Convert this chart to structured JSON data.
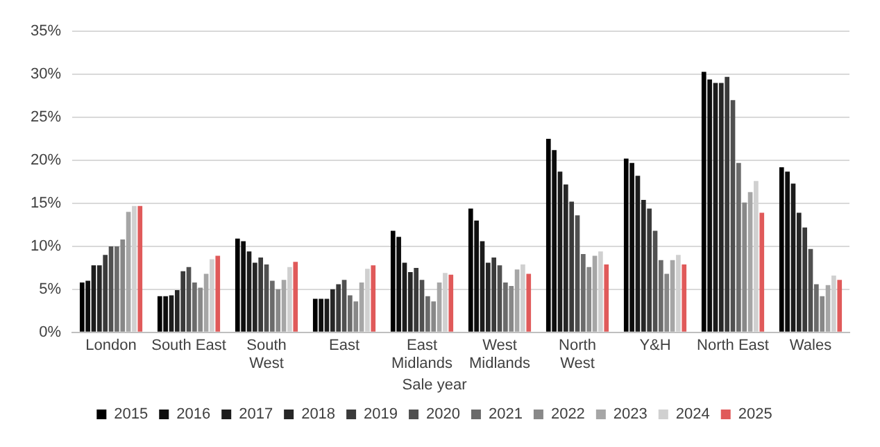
{
  "chart_data": {
    "type": "bar",
    "categories": [
      "London",
      "South East",
      "South\nWest",
      "East",
      "East\nMidlands",
      "West\nMidlands",
      "North\nWest",
      "Y&H",
      "North East",
      "Wales"
    ],
    "series": [
      {
        "name": "2015",
        "color": "#000000",
        "values": [
          5.8,
          4.2,
          10.9,
          3.9,
          11.8,
          14.4,
          22.5,
          20.2,
          30.3,
          19.2
        ]
      },
      {
        "name": "2016",
        "color": "#0d0d0d",
        "values": [
          6.0,
          4.2,
          10.6,
          3.9,
          11.1,
          13.0,
          21.2,
          19.7,
          29.4,
          18.7
        ]
      },
      {
        "name": "2017",
        "color": "#1c1c1c",
        "values": [
          7.8,
          4.3,
          9.4,
          3.9,
          8.1,
          10.6,
          18.7,
          18.2,
          29.0,
          17.3
        ]
      },
      {
        "name": "2018",
        "color": "#262626",
        "values": [
          7.8,
          4.9,
          8.1,
          5.0,
          7.0,
          8.1,
          17.2,
          15.4,
          29.0,
          13.9
        ]
      },
      {
        "name": "2019",
        "color": "#3a3a3a",
        "values": [
          9.0,
          7.1,
          8.7,
          5.6,
          7.5,
          8.7,
          15.2,
          14.4,
          29.7,
          12.2
        ]
      },
      {
        "name": "2020",
        "color": "#505050",
        "values": [
          10.0,
          7.6,
          7.9,
          6.1,
          6.1,
          7.8,
          13.6,
          11.8,
          27.0,
          9.7
        ]
      },
      {
        "name": "2021",
        "color": "#6b6b6b",
        "values": [
          10.0,
          5.8,
          6.0,
          4.3,
          4.2,
          5.8,
          9.1,
          8.4,
          19.7,
          5.6
        ]
      },
      {
        "name": "2022",
        "color": "#888888",
        "values": [
          10.8,
          5.2,
          5.0,
          3.6,
          3.6,
          5.4,
          7.6,
          6.8,
          15.1,
          4.2
        ]
      },
      {
        "name": "2023",
        "color": "#a6a6a6",
        "values": [
          14.0,
          6.8,
          6.1,
          5.8,
          5.8,
          7.3,
          8.9,
          8.4,
          16.3,
          5.5
        ]
      },
      {
        "name": "2024",
        "color": "#d0d0d0",
        "values": [
          14.7,
          8.5,
          7.6,
          7.4,
          6.9,
          7.9,
          9.4,
          9.0,
          17.6,
          6.6
        ]
      },
      {
        "name": "2025",
        "color": "#e05a5a",
        "values": [
          14.7,
          8.9,
          8.2,
          7.8,
          6.7,
          6.8,
          7.9,
          7.9,
          13.9,
          6.1
        ]
      }
    ],
    "ylim": [
      0,
      35
    ],
    "yticks": [
      {
        "value": 0,
        "label": "0%"
      },
      {
        "value": 5,
        "label": "5%"
      },
      {
        "value": 10,
        "label": "10%"
      },
      {
        "value": 15,
        "label": "15%"
      },
      {
        "value": 20,
        "label": "20%"
      },
      {
        "value": 25,
        "label": "25%"
      },
      {
        "value": 30,
        "label": "30%"
      },
      {
        "value": 35,
        "label": "35%"
      }
    ],
    "grid": "y",
    "legend": "bottom",
    "legend_title": "Sale year"
  }
}
